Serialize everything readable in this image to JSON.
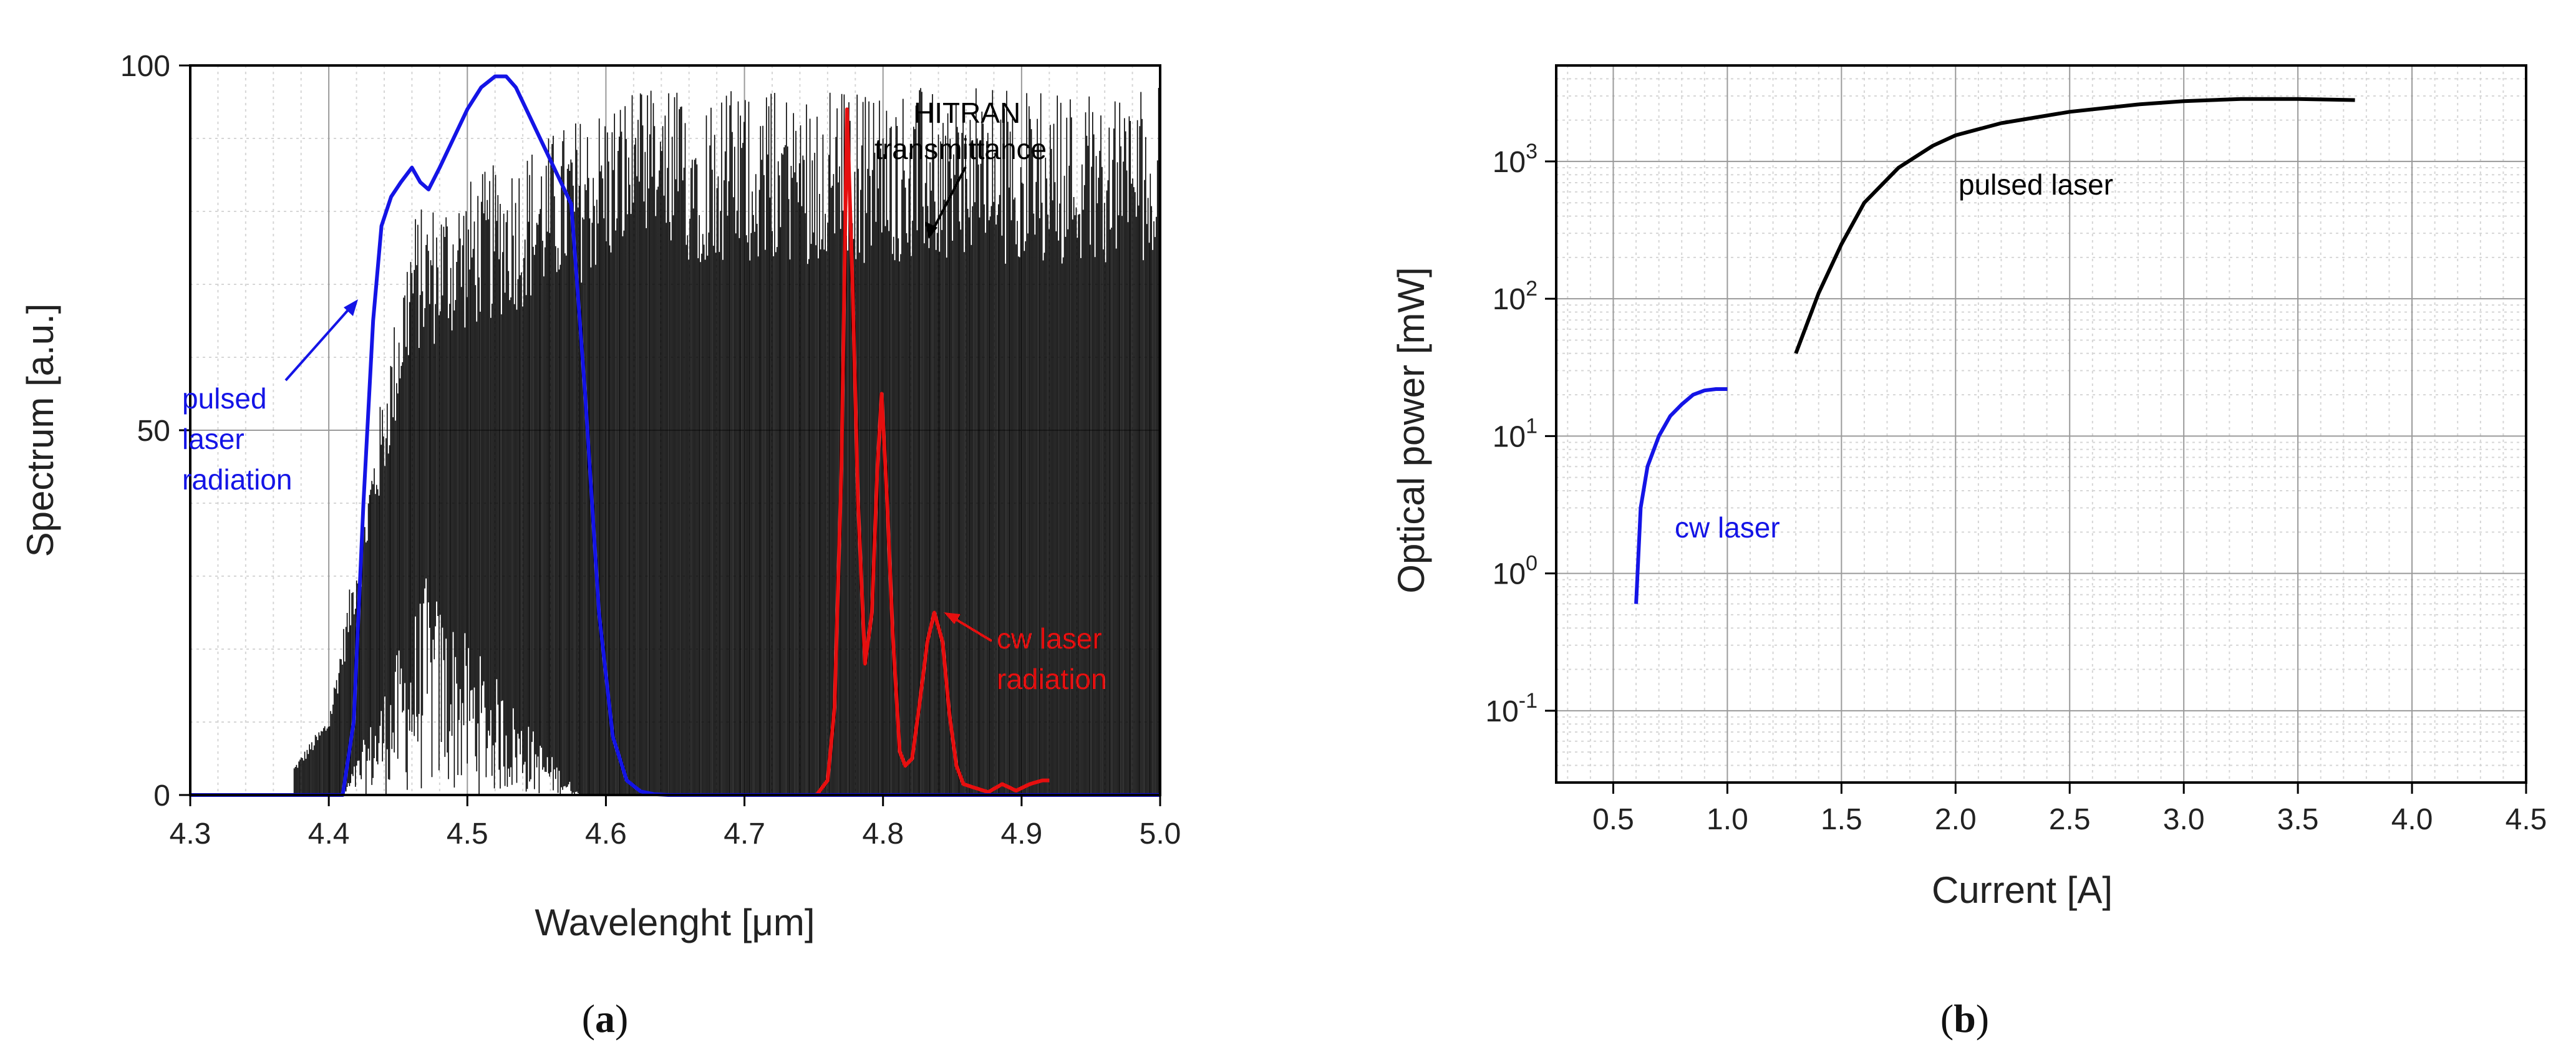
{
  "chart_data": [
    {
      "id": "a",
      "panel_label": "a",
      "type": "line",
      "xlabel": "Wavelenght [μm]",
      "ylabel": "Spectrum [a.u.]",
      "xlim": [
        4.3,
        5.0
      ],
      "ylim": [
        0,
        100
      ],
      "x_ticks": [
        "4.3",
        "4.4",
        "4.5",
        "4.6",
        "4.7",
        "4.8",
        "4.9",
        "5.0"
      ],
      "y_ticks": [
        "0",
        "50",
        "100"
      ],
      "grid": true,
      "series": [
        {
          "name": "pulsed laser radiation",
          "color": "#1414e6",
          "x": [
            4.3,
            4.41,
            4.418,
            4.425,
            4.432,
            4.438,
            4.445,
            4.452,
            4.46,
            4.466,
            4.472,
            4.48,
            4.49,
            4.5,
            4.51,
            4.52,
            4.528,
            4.535,
            4.545,
            4.555,
            4.565,
            4.575,
            4.585,
            4.595,
            4.605,
            4.615,
            4.625,
            4.635,
            4.645,
            4.66,
            5.0
          ],
          "y": [
            0,
            0,
            10,
            40,
            65,
            78,
            82,
            84,
            86,
            84,
            83,
            86,
            90,
            94,
            97,
            98.5,
            98.5,
            97,
            93,
            89,
            85,
            81,
            55,
            25,
            8,
            2,
            0.5,
            0.1,
            0,
            0,
            0
          ]
        },
        {
          "name": "cw laser radiation",
          "color": "#e60f0f",
          "x": [
            4.74,
            4.752,
            4.76,
            4.765,
            4.77,
            4.774,
            4.778,
            4.782,
            4.787,
            4.792,
            4.796,
            4.799,
            4.803,
            4.807,
            4.812,
            4.816,
            4.821,
            4.826,
            4.832,
            4.837,
            4.843,
            4.848,
            4.853,
            4.858,
            4.866,
            4.876,
            4.886,
            4.896,
            4.906,
            4.915,
            4.92
          ],
          "y": [
            0,
            0,
            2,
            12,
            45,
            94,
            70,
            40,
            18,
            25,
            45,
            55,
            40,
            22,
            6,
            4,
            5,
            12,
            21,
            25,
            21,
            11,
            4,
            1.5,
            1,
            0.4,
            1.5,
            0.6,
            1.5,
            2,
            2
          ]
        },
        {
          "name": "HITRAN transmittance",
          "color": "#000000",
          "x_range": [
            4.375,
            5.0
          ],
          "y_range": [
            0,
            98
          ]
        }
      ],
      "annotations": [
        {
          "lines": [
            "HITRAN",
            "transmittance"
          ],
          "color": "#000000"
        },
        {
          "lines": [
            "pulsed",
            "laser",
            "radiation"
          ],
          "color": "#1414e6"
        },
        {
          "lines": [
            "cw laser",
            "radiation"
          ],
          "color": "#e60f0f"
        }
      ]
    },
    {
      "id": "b",
      "panel_label": "b",
      "type": "line",
      "yscale": "log",
      "xlabel": "Current [A]",
      "ylabel": "Optical power [mW]",
      "xlim": [
        0.25,
        4.5
      ],
      "ylim": [
        0.03,
        5000
      ],
      "x_ticks": [
        "0.5",
        "1.0",
        "1.5",
        "2.0",
        "2.5",
        "3.0",
        "3.5",
        "4.0",
        "4.5"
      ],
      "y_ticks": [
        {
          "base": "10",
          "exp": "-1"
        },
        {
          "base": "10",
          "exp": "0"
        },
        {
          "base": "10",
          "exp": "1"
        },
        {
          "base": "10",
          "exp": "2"
        },
        {
          "base": "10",
          "exp": "3"
        }
      ],
      "grid": true,
      "series": [
        {
          "name": "cw laser",
          "color": "#1414e6",
          "x": [
            0.6,
            0.62,
            0.65,
            0.7,
            0.75,
            0.8,
            0.85,
            0.9,
            0.95,
            1.0
          ],
          "y": [
            0.6,
            3.0,
            6.0,
            10,
            14,
            17,
            20,
            21.5,
            22,
            22
          ]
        },
        {
          "name": "pulsed laser",
          "color": "#000000",
          "x": [
            1.3,
            1.4,
            1.5,
            1.6,
            1.75,
            1.9,
            2.0,
            2.2,
            2.5,
            2.8,
            3.0,
            3.25,
            3.5,
            3.75
          ],
          "y": [
            40,
            110,
            250,
            500,
            900,
            1300,
            1550,
            1900,
            2300,
            2600,
            2750,
            2850,
            2850,
            2800
          ]
        }
      ],
      "annotations": [
        {
          "text": "pulsed laser",
          "color": "#000000"
        },
        {
          "text": "cw laser",
          "color": "#1414e6"
        }
      ]
    }
  ]
}
